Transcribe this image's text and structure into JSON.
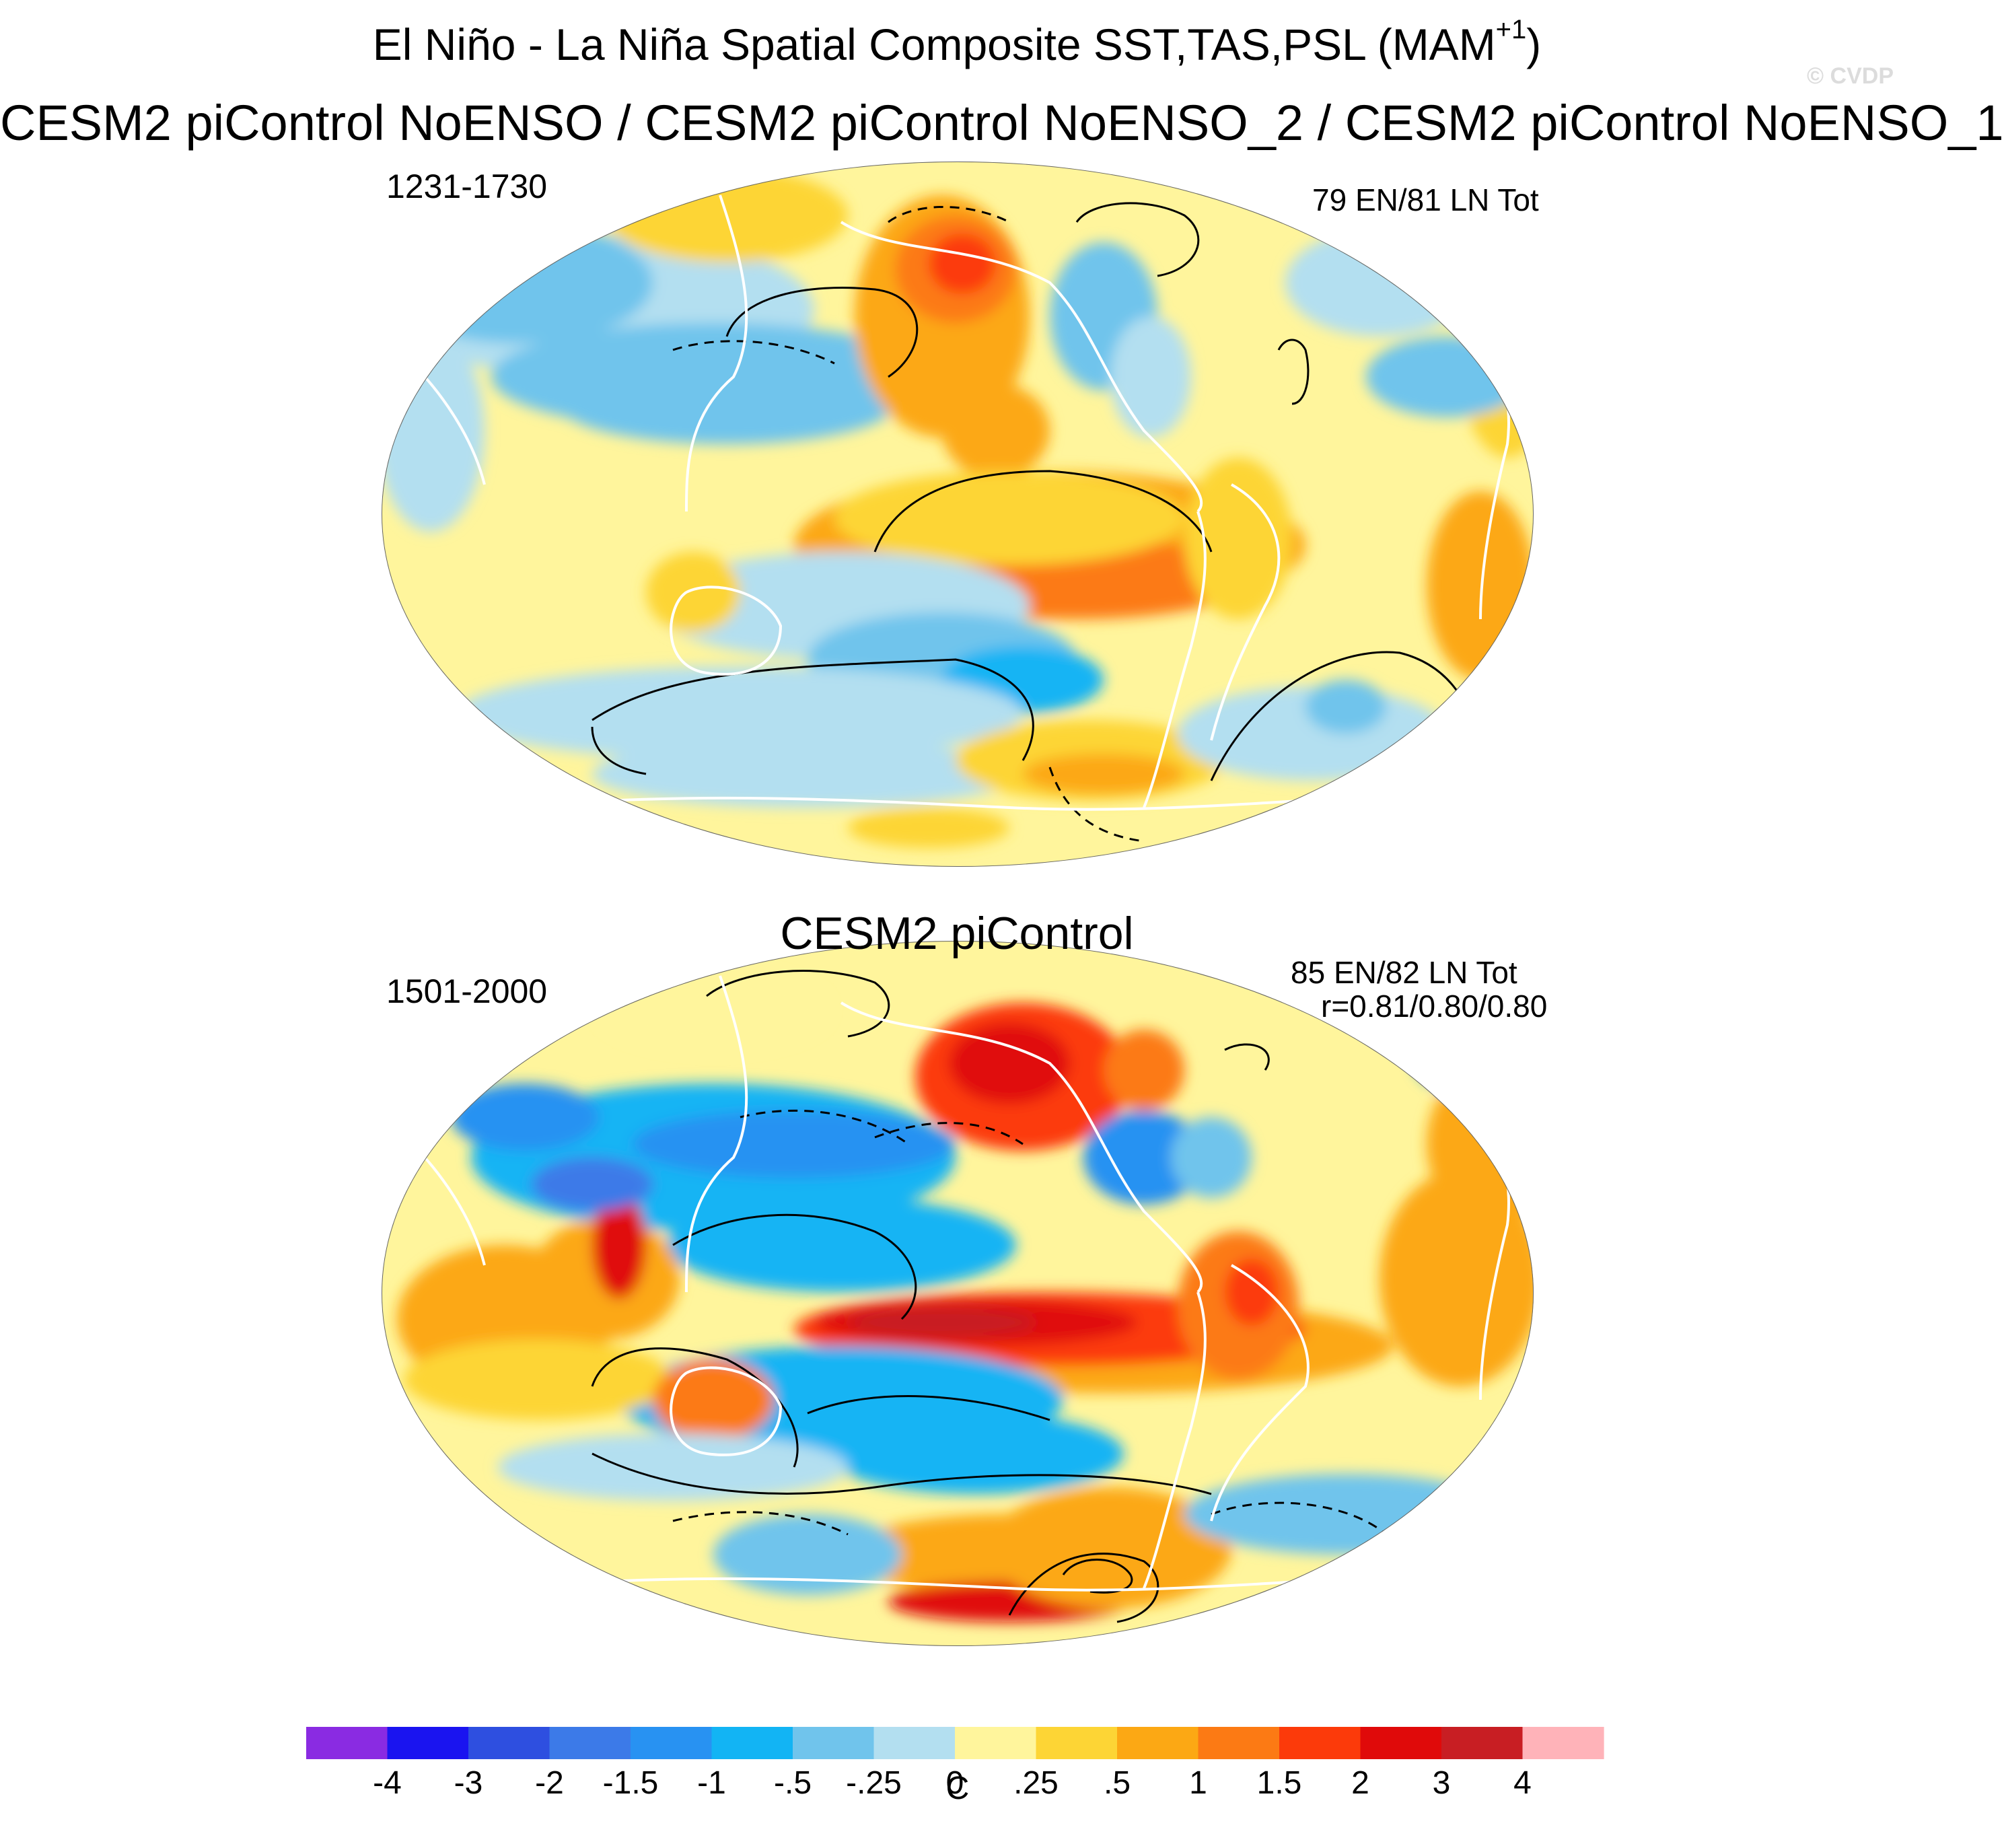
{
  "header": {
    "title_main": "El Niño - La Niña Spatial Composite SST,TAS,PSL (MAM",
    "title_sup": "+1",
    "title_close": ")",
    "subtitle": "CESM2 piControl NoENSO / CESM2 piControl NoENSO_2 / CESM2 piControl NoENSO_1",
    "watermark": "© CVDP"
  },
  "panels": [
    {
      "years": "1231-1730",
      "stats": "79 EN/81 LN Tot",
      "title": ""
    },
    {
      "title": "CESM2 piControl",
      "years": "1501-2000",
      "stats": "85 EN/82 LN Tot",
      "correlation": "r=0.81/0.80/0.80"
    }
  ],
  "colorbar": {
    "unit": "C",
    "labels": [
      "-4",
      "-3",
      "-2",
      "-1.5",
      "-1",
      "-.5",
      "-.25",
      "0",
      ".25",
      ".5",
      "1",
      "1.5",
      "2",
      "3",
      "4"
    ],
    "colors": [
      "#8a2be2",
      "#1a14f0",
      "#2e4fe0",
      "#3c7ae8",
      "#2892f2",
      "#12b4f4",
      "#70c4ec",
      "#b3dff0",
      "#fff59c",
      "#fdd535",
      "#fca814",
      "#fc7a14",
      "#fc3a0a",
      "#e00a0a",
      "#c81e23",
      "#ffb3b9"
    ]
  },
  "palette": {
    "neutral_pos": "#fff59c",
    "neutral_neg": "#b3dff0",
    "warm1": "#fdd535",
    "warm2": "#fca814",
    "warm3": "#fc7a14",
    "warm4": "#fc3a0a",
    "warm5": "#e00a0a",
    "warm6": "#c81e23",
    "cool1": "#70c4ec",
    "cool2": "#12b4f4",
    "cool3": "#2892f2",
    "cool4": "#3c7ae8",
    "cool5": "#2e4fe0",
    "coast": "#ffffff",
    "contour": "#000000"
  }
}
